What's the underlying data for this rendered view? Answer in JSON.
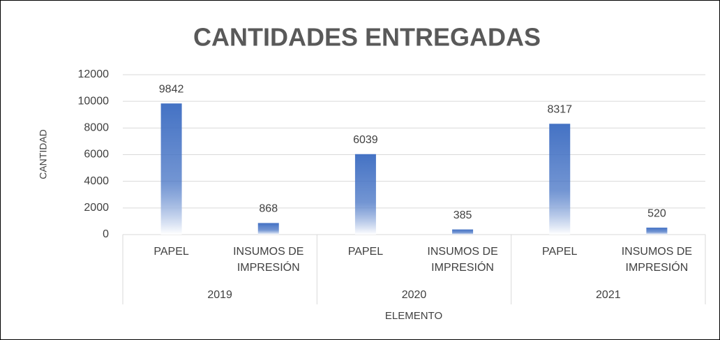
{
  "chart_data": {
    "type": "bar",
    "title": "CANTIDADES ENTREGADAS",
    "ylabel": "CANTIDAD",
    "xlabel": "ELEMENTO",
    "categories": [
      "PAPEL",
      "INSUMOS DE IMPRESIÓN",
      "PAPEL",
      "INSUMOS DE IMPRESIÓN",
      "PAPEL",
      "INSUMOS DE IMPRESIÓN"
    ],
    "groups": [
      "2019",
      "2020",
      "2021"
    ],
    "values": [
      9842,
      868,
      6039,
      385,
      8317,
      520
    ],
    "color": "#4472c4",
    "ylim": [
      0,
      12000
    ],
    "yticks": [
      0,
      2000,
      4000,
      6000,
      8000,
      10000,
      12000
    ],
    "grid": true
  }
}
